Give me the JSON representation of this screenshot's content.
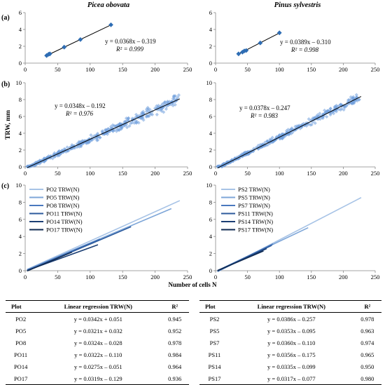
{
  "species": [
    "Picea obovata",
    "Pinus sylvestris"
  ],
  "panel_labels": [
    "(a)",
    "(b)",
    "(c)"
  ],
  "y_axis_label": "TRW, mm",
  "x_axis_label": "Number of cells N",
  "colors": {
    "diamond_dark": "#2e6db4",
    "scatter_light": "#6f9fdc",
    "fit_line": "#000000",
    "series_shades": [
      "#a7c3e6",
      "#7ea6d8",
      "#4a79be",
      "#2c5a9c",
      "#1c3f74",
      "#0f2a52"
    ]
  },
  "chart_data": [
    {
      "id": "a-picea",
      "type": "scatter",
      "panel": "(a)",
      "species": "Picea obovata",
      "xlim": [
        0,
        250
      ],
      "ylim": [
        0,
        6
      ],
      "x_ticks": [
        0,
        50,
        100,
        150,
        200,
        250
      ],
      "y_ticks": [
        0,
        2,
        4,
        6
      ],
      "points": [
        [
          33,
          0.9
        ],
        [
          36,
          1.05
        ],
        [
          38,
          1.1
        ],
        [
          60,
          1.9
        ],
        [
          85,
          2.8
        ],
        [
          132,
          4.55
        ]
      ],
      "fit": {
        "slope": 0.0368,
        "intercept": -0.319,
        "x_range": [
          33,
          132
        ]
      },
      "equation": "y = 0.0368x – 0.319",
      "r2_label": "R² = 0.999"
    },
    {
      "id": "a-pinus",
      "type": "scatter",
      "panel": "(a)",
      "species": "Pinus sylvestris",
      "xlim": [
        0,
        250
      ],
      "ylim": [
        0,
        6
      ],
      "x_ticks": [
        0,
        50,
        100,
        150,
        200,
        250
      ],
      "y_ticks": [
        0,
        2,
        4,
        6
      ],
      "points": [
        [
          36,
          1.1
        ],
        [
          42,
          1.3
        ],
        [
          45,
          1.45
        ],
        [
          48,
          1.5
        ],
        [
          70,
          2.4
        ],
        [
          100,
          3.6
        ]
      ],
      "fit": {
        "slope": 0.0389,
        "intercept": -0.31,
        "x_range": [
          36,
          100
        ]
      },
      "equation": "y = 0.0389x – 0.310",
      "r2_label": "R² = 0.998"
    },
    {
      "id": "b-picea",
      "type": "scatter",
      "panel": "(b)",
      "species": "Picea obovata",
      "xlim": [
        0,
        250
      ],
      "ylim": [
        0,
        10
      ],
      "x_ticks": [
        0,
        50,
        100,
        150,
        200,
        250
      ],
      "y_ticks": [
        0,
        2,
        4,
        6,
        8,
        10
      ],
      "cloud": {
        "x_range": [
          3,
          238
        ],
        "slope": 0.0348,
        "intercept": -0.192,
        "spread": 0.55,
        "count": 420
      },
      "fit": {
        "slope": 0.0348,
        "intercept": -0.192,
        "x_range": [
          3,
          238
        ]
      },
      "equation": "y = 0.0348x – 0.192",
      "r2_label": "R² = 0.976"
    },
    {
      "id": "b-pinus",
      "type": "scatter",
      "panel": "(b)",
      "species": "Pinus sylvestris",
      "xlim": [
        0,
        250
      ],
      "ylim": [
        0,
        10
      ],
      "x_ticks": [
        0,
        50,
        100,
        150,
        200,
        250
      ],
      "y_ticks": [
        0,
        2,
        4,
        6,
        8,
        10
      ],
      "cloud": {
        "x_range": [
          3,
          228
        ],
        "slope": 0.0378,
        "intercept": -0.247,
        "spread": 0.45,
        "count": 420
      },
      "fit": {
        "slope": 0.0378,
        "intercept": -0.247,
        "x_range": [
          3,
          228
        ]
      },
      "equation": "y = 0.0378x – 0.247",
      "r2_label": "R² = 0.983"
    },
    {
      "id": "c-picea",
      "type": "line",
      "panel": "(c)",
      "species": "Picea obovata",
      "xlim": [
        0,
        250
      ],
      "ylim": [
        0,
        10
      ],
      "x_ticks": [
        0,
        50,
        100,
        150,
        200,
        250
      ],
      "y_ticks": [
        0,
        2,
        4,
        6,
        8,
        10
      ],
      "series": [
        {
          "name": "PO2 TRW(N)",
          "slope": 0.0342,
          "intercept": 0.051,
          "x_range": [
            3,
            238
          ]
        },
        {
          "name": "PO5 TRW(N)",
          "slope": 0.0321,
          "intercept": 0.032,
          "x_range": [
            3,
            225
          ]
        },
        {
          "name": "PO8 TRW(N)",
          "slope": 0.0324,
          "intercept": -0.028,
          "x_range": [
            3,
            115
          ]
        },
        {
          "name": "PO11 TRW(N)",
          "slope": 0.0322,
          "intercept": -0.11,
          "x_range": [
            3,
            163
          ]
        },
        {
          "name": "PO14 TRW(N)",
          "slope": 0.0275,
          "intercept": -0.051,
          "x_range": [
            3,
            112
          ]
        },
        {
          "name": "PO17 TRW(N)",
          "slope": 0.0319,
          "intercept": -0.129,
          "x_range": [
            3,
            72
          ]
        }
      ]
    },
    {
      "id": "c-pinus",
      "type": "line",
      "panel": "(c)",
      "species": "Pinus sylvestris",
      "xlim": [
        0,
        250
      ],
      "ylim": [
        0,
        10
      ],
      "x_ticks": [
        0,
        50,
        100,
        150,
        200,
        250
      ],
      "y_ticks": [
        0,
        2,
        4,
        6,
        8,
        10
      ],
      "series": [
        {
          "name": "PS2 TRW(N)",
          "slope": 0.0386,
          "intercept": -0.257,
          "x_range": [
            3,
            228
          ]
        },
        {
          "name": "PS5 TRW(N)",
          "slope": 0.0353,
          "intercept": -0.095,
          "x_range": [
            3,
            145
          ]
        },
        {
          "name": "PS7 TRW(N)",
          "slope": 0.036,
          "intercept": -0.11,
          "x_range": [
            3,
            90
          ]
        },
        {
          "name": "PS11 TRW(N)",
          "slope": 0.0356,
          "intercept": -0.175,
          "x_range": [
            3,
            88
          ]
        },
        {
          "name": "PS14 TRW(N)",
          "slope": 0.0335,
          "intercept": -0.099,
          "x_range": [
            3,
            80
          ]
        },
        {
          "name": "PS17 TRW(N)",
          "slope": 0.0317,
          "intercept": -0.077,
          "x_range": [
            3,
            75
          ]
        }
      ]
    }
  ],
  "tables": {
    "headers": [
      "Plot",
      "Linear regression TRW(N)",
      "R²"
    ],
    "left": [
      [
        "PO2",
        "y = 0.0342x + 0.051",
        "0.945"
      ],
      [
        "PO5",
        "y = 0.0321x + 0.032",
        "0.952"
      ],
      [
        "PO8",
        "y = 0.0324x – 0.028",
        "0.978"
      ],
      [
        "PO11",
        "y = 0.0322x – 0.110",
        "0.984"
      ],
      [
        "PO14",
        "y = 0.0275x – 0.051",
        "0.964"
      ],
      [
        "PO17",
        "y = 0.0319x – 0.129",
        "0.936"
      ]
    ],
    "right": [
      [
        "PS2",
        "y = 0.0386x – 0.257",
        "0.978"
      ],
      [
        "PS5",
        "y = 0.0353x – 0.095",
        "0.963"
      ],
      [
        "PS7",
        "y = 0.0360x – 0.110",
        "0.974"
      ],
      [
        "PS11",
        "y = 0.0356x – 0.175",
        "0.965"
      ],
      [
        "PS14",
        "y = 0.0335x – 0.099",
        "0.950"
      ],
      [
        "PS17",
        "y = 0.0317x – 0.077",
        "0.980"
      ]
    ]
  }
}
